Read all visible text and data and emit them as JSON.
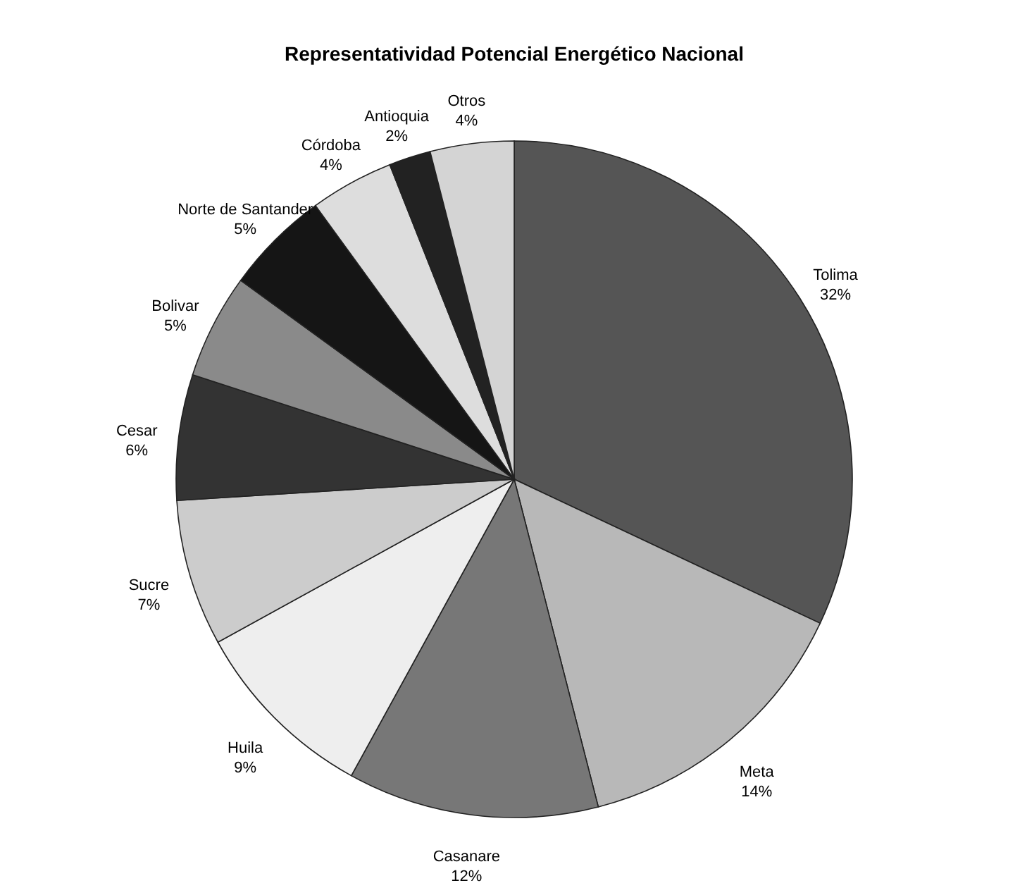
{
  "chart_data": {
    "type": "pie",
    "title": "Representatividad  Potencial Energético Nacional",
    "categories": [
      "Tolima",
      "Meta",
      "Casanare",
      "Huila",
      "Sucre",
      "Cesar",
      "Bolivar",
      "Norte de Santander",
      "Córdoba",
      "Antioquia",
      "Otros"
    ],
    "values": [
      32,
      14,
      12,
      9,
      7,
      6,
      5,
      5,
      4,
      2,
      4
    ],
    "value_labels": [
      "32%",
      "14%",
      "12%",
      "9%",
      "7%",
      "6%",
      "5%",
      "5%",
      "4%",
      "2%",
      "4%"
    ],
    "colors": [
      "#555555",
      "#b8b8b8",
      "#777777",
      "#eeeeee",
      "#cccccc",
      "#333333",
      "#8a8a8a",
      "#151515",
      "#dddddd",
      "#222222",
      "#d4d4d4"
    ],
    "legend": false
  }
}
